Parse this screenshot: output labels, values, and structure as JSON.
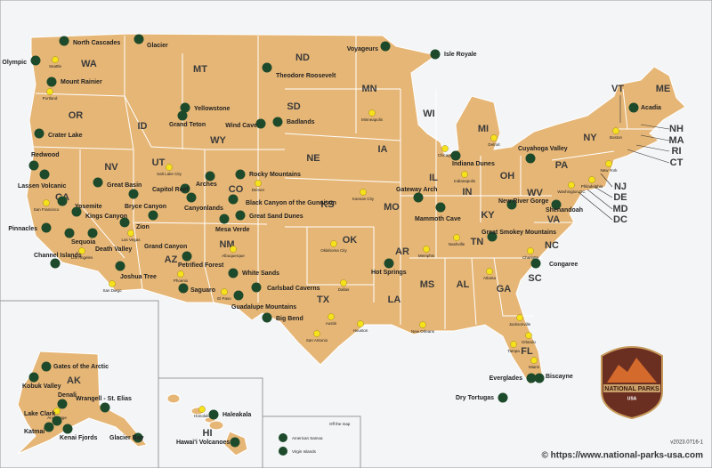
{
  "states": [
    "WA",
    "OR",
    "CA",
    "NV",
    "ID",
    "MT",
    "WY",
    "UT",
    "AZ",
    "CO",
    "NM",
    "ND",
    "SD",
    "NE",
    "KS",
    "OK",
    "TX",
    "MN",
    "IA",
    "MO",
    "AR",
    "LA",
    "WI",
    "IL",
    "MI",
    "IN",
    "OH",
    "KY",
    "TN",
    "MS",
    "AL",
    "GA",
    "FL",
    "SC",
    "NC",
    "VA",
    "WV",
    "PA",
    "NY",
    "VT",
    "NH",
    "ME",
    "MA",
    "RI",
    "CT",
    "NJ",
    "DE",
    "MD",
    "DC",
    "AK",
    "HI"
  ],
  "parks": [
    "North Cascades",
    "Olympic",
    "Mount Rainier",
    "Crater Lake",
    "Redwood",
    "Lassen Volcanic",
    "Yosemite",
    "Kings Canyon",
    "Pinnacles",
    "Sequoia",
    "Death Valley",
    "Channel Islands",
    "Joshua Tree",
    "Great Basin",
    "Bryce Canyon",
    "Zion",
    "Capitol Reef",
    "Arches",
    "Canyonlands",
    "Grand Canyon",
    "Petrified Forest",
    "Saguaro",
    "Mesa Verde",
    "Black Canyon of the Gunnison",
    "Rocky Mountains",
    "Great Sand Dunes",
    "White Sands",
    "Carlsbad Caverns",
    "Guadalupe Mountains",
    "Big Bend",
    "Glacier",
    "Yellowstone",
    "Grand Teton",
    "Theodore Roosevelt",
    "Wind Cave",
    "Badlands",
    "Voyageurs",
    "Isle Royale",
    "Gateway Arch",
    "Hot Springs",
    "Mammoth Cave",
    "Indiana Dunes",
    "Cuyahoga Valley",
    "Acadia",
    "New River Gorge",
    "Shenandoah",
    "Great Smokey Mountains",
    "Congaree",
    "Everglades",
    "Biscayne",
    "Dry Tortugas",
    "Gates of the Arctic",
    "Kobuk Valley",
    "Denali",
    "Wrangell - St. Elias",
    "Lake Clark",
    "Katmai",
    "Kenai Fjords",
    "Glacier Bay",
    "Haleakala",
    "Hawai'i Volcanoes"
  ],
  "cities": [
    "Seattle",
    "Portland",
    "Minneapolis",
    "Chicago",
    "Detroit",
    "Indianapolis",
    "Kansas City",
    "Denver",
    "Salt Lake City",
    "San Francisco",
    "Las Vegas",
    "Los Angeles",
    "San Diego",
    "Phoenix",
    "Albuquerque",
    "El Paso",
    "Oklahoma City",
    "Dallas",
    "Austin",
    "San Antonio",
    "Houston",
    "New Orleans",
    "Memphis",
    "Nashville",
    "Atlanta",
    "Charlotte",
    "Jacksonville",
    "Orlando",
    "Tampa",
    "Miami",
    "Boston",
    "New York",
    "Philadelphia",
    "Washington DC",
    "Anchorage",
    "Honolulu"
  ],
  "off_map": {
    "title": "Off the map",
    "parks": [
      "American Samoa",
      "Virgin Islands"
    ]
  },
  "logo": {
    "title": "NATIONAL PARKS",
    "subtitle": "USA"
  },
  "version": "v2023.0716-1",
  "footer": "© https://www.national-parks-usa.com"
}
